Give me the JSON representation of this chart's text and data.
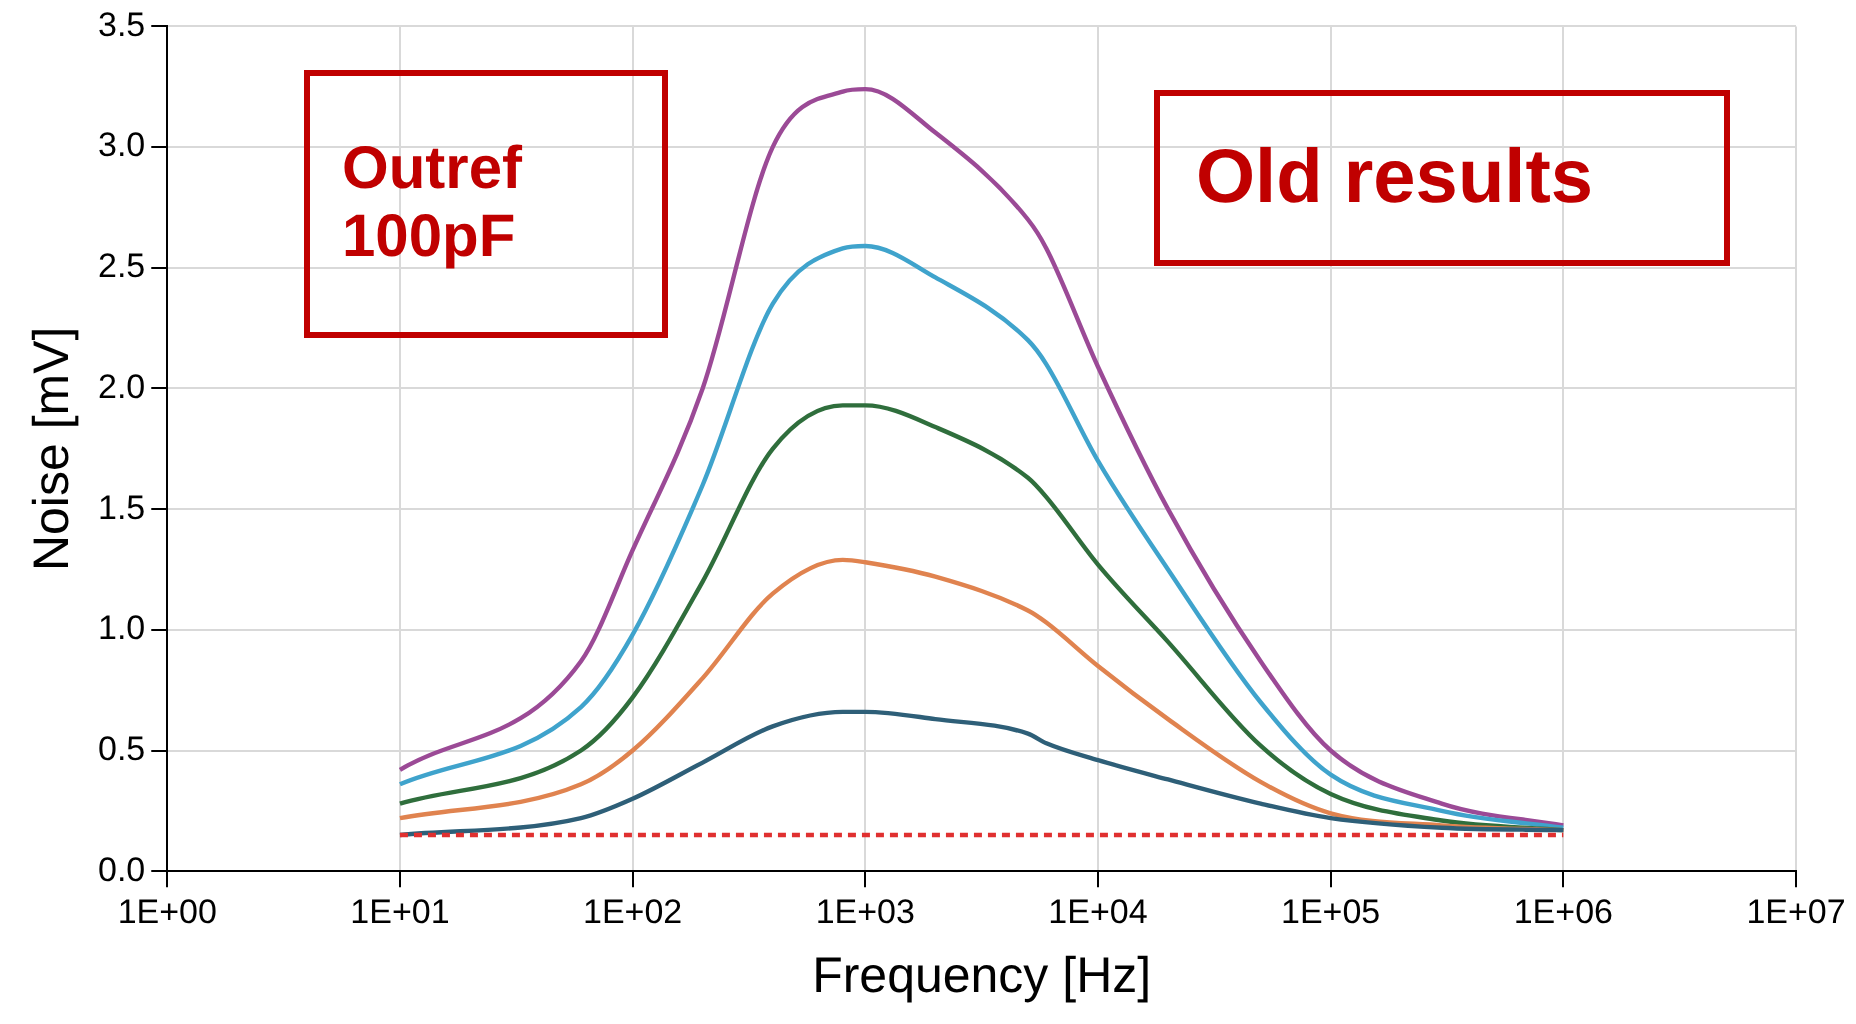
{
  "chart_data": {
    "type": "line",
    "xlabel": "Frequency [Hz]",
    "ylabel": "Noise [mV]",
    "log": "x",
    "grid": true,
    "legend": false,
    "marker": "none",
    "xlim": [
      1,
      10000000
    ],
    "xticks": [
      {
        "value": 1,
        "label": "1E+00"
      },
      {
        "value": 10,
        "label": "1E+01"
      },
      {
        "value": 100,
        "label": "1E+02"
      },
      {
        "value": 1000,
        "label": "1E+03"
      },
      {
        "value": 10000,
        "label": "1E+04"
      },
      {
        "value": 100000,
        "label": "1E+05"
      },
      {
        "value": 1000000,
        "label": "1E+06"
      },
      {
        "value": 10000000,
        "label": "1E+07"
      }
    ],
    "ylim": [
      0,
      3.5
    ],
    "yticks": [
      {
        "value": 0,
        "label": "0.0"
      },
      {
        "value": 0.5,
        "label": "0.5"
      },
      {
        "value": 1,
        "label": "1.0"
      },
      {
        "value": 1.5,
        "label": "1.5"
      },
      {
        "value": 2,
        "label": "2.0"
      },
      {
        "value": 2.5,
        "label": "2.5"
      },
      {
        "value": 3,
        "label": "3.0"
      },
      {
        "value": 3.5,
        "label": "3.5"
      }
    ],
    "x": [
      10,
      60,
      100,
      200,
      400,
      800,
      1000,
      2000,
      5000,
      6000,
      10000,
      20000,
      50000,
      100000,
      300000,
      1000000
    ],
    "series": [
      {
        "color": "#9b4a96",
        "values": [
          0.42,
          0.87,
          1.33,
          2.0,
          3.0,
          3.23,
          3.24,
          3.06,
          2.7,
          2.58,
          2.09,
          1.5,
          0.87,
          0.5,
          0.28,
          0.19
        ]
      },
      {
        "color": "#3fa3cc",
        "values": [
          0.36,
          0.68,
          0.98,
          1.6,
          2.35,
          2.58,
          2.59,
          2.46,
          2.2,
          2.1,
          1.7,
          1.25,
          0.7,
          0.4,
          0.25,
          0.18
        ]
      },
      {
        "color": "#2f6e3c",
        "values": [
          0.28,
          0.5,
          0.72,
          1.2,
          1.75,
          1.93,
          1.93,
          1.84,
          1.63,
          1.55,
          1.27,
          0.95,
          0.52,
          0.32,
          0.21,
          0.17
        ]
      },
      {
        "color": "#e0834f",
        "values": [
          0.22,
          0.36,
          0.5,
          0.8,
          1.15,
          1.29,
          1.28,
          1.22,
          1.08,
          1.03,
          0.85,
          0.63,
          0.37,
          0.24,
          0.19,
          0.17
        ]
      },
      {
        "color": "#2e5f78",
        "values": [
          0.15,
          0.22,
          0.3,
          0.45,
          0.6,
          0.66,
          0.66,
          0.63,
          0.57,
          0.53,
          0.46,
          0.38,
          0.28,
          0.22,
          0.18,
          0.17
        ]
      },
      {
        "color": "#e03030",
        "line_style": "dashed",
        "x": [
          10,
          1000000
        ],
        "values": [
          0.15,
          0.15
        ]
      }
    ],
    "annotations": [
      "Outref 100pF",
      "Old results"
    ]
  }
}
